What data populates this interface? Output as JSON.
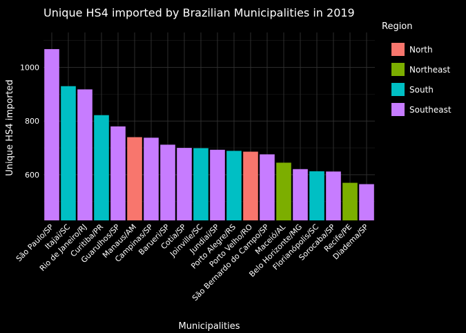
{
  "chart_data": {
    "type": "bar",
    "title": "Unique HS4 imported by Brazilian Municipalities in 2019",
    "xlabel": "Municipalities",
    "ylabel": "Unique HS4 imported",
    "ylim": [
      430,
      1130
    ],
    "yticks": [
      600,
      800,
      1000
    ],
    "grid": true,
    "legend": {
      "title": "Region",
      "placement": "right",
      "entries": [
        {
          "name": "North",
          "color": "#F8766D"
        },
        {
          "name": "Northeast",
          "color": "#7CAE00"
        },
        {
          "name": "South",
          "color": "#00BFC4"
        },
        {
          "name": "Southeast",
          "color": "#C77CFF"
        }
      ]
    },
    "categories": [
      "São Paulo/SP",
      "Itajaí/SC",
      "Rio de Janeiro/RJ",
      "Curitiba/PR",
      "Guarulhos/SP",
      "Manaus/AM",
      "Campinas/SP",
      "Barueri/SP",
      "Cotia/SP",
      "Joinville/SC",
      "Jundiaí/SP",
      "Porto Alegre/RS",
      "Porto Velho/RO",
      "São Bernardo do Campo/SP",
      "Maceió/AL",
      "Belo Horizonte/MG",
      "Florianópolis/SC",
      "Sorocaba/SP",
      "Recife/PE",
      "Diadema/SP"
    ],
    "values": [
      1068,
      930,
      918,
      822,
      780,
      740,
      738,
      712,
      700,
      699,
      693,
      689,
      686,
      676,
      645,
      621,
      613,
      612,
      570,
      565
    ],
    "regions": [
      "Southeast",
      "South",
      "Southeast",
      "South",
      "Southeast",
      "North",
      "Southeast",
      "Southeast",
      "Southeast",
      "South",
      "Southeast",
      "South",
      "North",
      "Southeast",
      "Northeast",
      "Southeast",
      "South",
      "Southeast",
      "Northeast",
      "Southeast"
    ]
  }
}
